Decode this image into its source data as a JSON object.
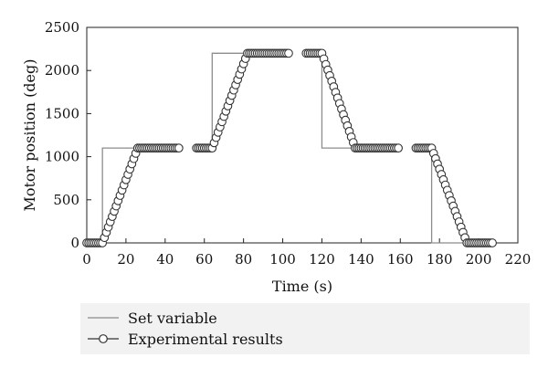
{
  "chart_data": {
    "type": "line",
    "xlabel": "Time (s)",
    "ylabel": "Motor position (deg)",
    "xlim": [
      0,
      220
    ],
    "ylim": [
      0,
      2500
    ],
    "xticks": [
      "0",
      "20",
      "40",
      "60",
      "80",
      "100",
      "120",
      "140",
      "160",
      "180",
      "200",
      "220"
    ],
    "yticks": [
      "0",
      "500",
      "1000",
      "1500",
      "2000",
      "2500"
    ],
    "grid": false,
    "legend_position": "bottom",
    "series": [
      {
        "name": "Set variable",
        "color": "#8c8c8c",
        "marker": "none",
        "segments": [
          [
            [
              0,
              0
            ],
            [
              8,
              0
            ],
            [
              8,
              1100
            ],
            [
              47,
              1100
            ]
          ],
          [
            [
              56,
              1100
            ],
            [
              64,
              1100
            ],
            [
              64,
              2200
            ],
            [
              103,
              2200
            ]
          ],
          [
            [
              112,
              2200
            ],
            [
              120,
              2200
            ],
            [
              120,
              1100
            ],
            [
              159,
              1100
            ]
          ],
          [
            [
              168,
              1100
            ],
            [
              176,
              1100
            ],
            [
              176,
              0
            ],
            [
              207,
              0
            ]
          ]
        ]
      },
      {
        "name": "Experimental results",
        "color": "#333333",
        "marker": "circle",
        "segments": [
          [
            [
              0,
              0
            ],
            [
              8,
              0
            ],
            [
              26,
              1100
            ],
            [
              47,
              1100
            ]
          ],
          [
            [
              56,
              1100
            ],
            [
              64,
              1100
            ],
            [
              82,
              2200
            ],
            [
              103,
              2200
            ]
          ],
          [
            [
              112,
              2200
            ],
            [
              120,
              2200
            ],
            [
              137,
              1100
            ],
            [
              159,
              1100
            ]
          ],
          [
            [
              168,
              1100
            ],
            [
              176,
              1100
            ],
            [
              194,
              0
            ],
            [
              207,
              0
            ]
          ]
        ]
      }
    ]
  }
}
